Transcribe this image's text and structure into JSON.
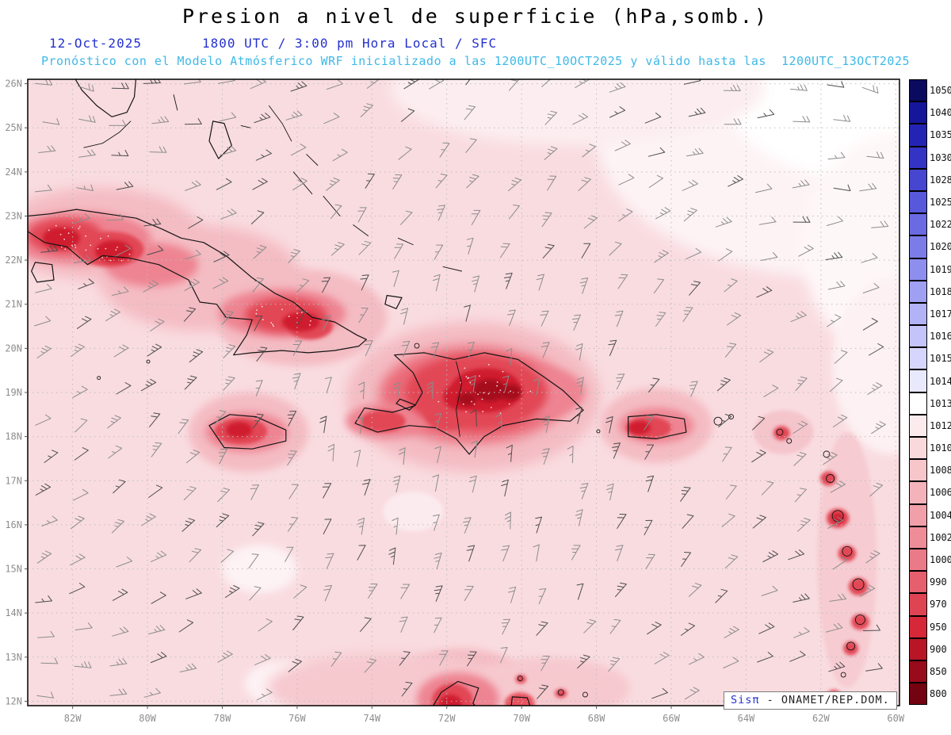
{
  "title": "Presion a nivel de superficie (hPa,somb.)",
  "subtitle": {
    "date": "12-Oct-2025",
    "time": "1800 UTC / 3:00 pm Hora Local / SFC",
    "model_note": "Pronóstico con el Modelo Atmósferico WRF inicializado a las 1200UTC_10OCT2025 y válido hasta las  1200UTC_13OCT2025"
  },
  "credit": {
    "brand": "Sisπ",
    "text": " - ONAMET/REP.DOM."
  },
  "colors": {
    "title_text": "#000000",
    "datetime_text": "#2531cf",
    "note_text": "#3fb8e8",
    "axis_label": "#8e8e8e",
    "sea_base": "#f9dce0",
    "coastline": "#141414",
    "grid": "#bdbdbd"
  },
  "map": {
    "extent": {
      "lon_min": -83.2,
      "lon_max": -59.9,
      "lat_min": 11.9,
      "lat_max": 26.1
    },
    "lat_labels": [
      "26N",
      "25N",
      "24N",
      "23N",
      "22N",
      "21N",
      "20N",
      "19N",
      "18N",
      "17N",
      "16N",
      "15N",
      "14N",
      "13N",
      "12N"
    ],
    "lon_labels": [
      "82W",
      "80W",
      "78W",
      "76W",
      "74W",
      "72W",
      "70W",
      "68W",
      "66W",
      "64W",
      "62W",
      "60W"
    ]
  },
  "colorbar": {
    "labels": [
      "1050",
      "1040",
      "1035",
      "1030",
      "1028",
      "1025",
      "1022",
      "1020",
      "1019",
      "1018",
      "1017",
      "1016",
      "1015",
      "1014",
      "1013",
      "1012",
      "1010",
      "1008",
      "1006",
      "1004",
      "1002",
      "1000",
      "990",
      "970",
      "950",
      "900",
      "850",
      "800"
    ],
    "colors": [
      "#0a0a5e",
      "#16169b",
      "#2424b4",
      "#3434c4",
      "#4646d0",
      "#5858da",
      "#6a6ae2",
      "#7c7ce9",
      "#8e8eef",
      "#a0a0f3",
      "#b2b2f7",
      "#c4c4fa",
      "#d6d6fc",
      "#e9e9fe",
      "#ffffff",
      "#fcebed",
      "#fad9dc",
      "#f7c6cb",
      "#f4b3ba",
      "#f1a0a9",
      "#ee8d98",
      "#ea7a87",
      "#e55f6d",
      "#df4453",
      "#d62838",
      "#b81626",
      "#970b1a",
      "#730310"
    ]
  },
  "geo": {
    "polygons": {
      "cuba": [
        [
          -83.2,
          23.0
        ],
        [
          -82.6,
          23.05
        ],
        [
          -81.9,
          23.15
        ],
        [
          -81.1,
          23.05
        ],
        [
          -80.3,
          22.95
        ],
        [
          -79.6,
          22.7
        ],
        [
          -79.1,
          22.5
        ],
        [
          -78.5,
          22.4
        ],
        [
          -77.9,
          22.1
        ],
        [
          -77.2,
          21.6
        ],
        [
          -76.6,
          21.25
        ],
        [
          -76.1,
          21.05
        ],
        [
          -75.6,
          20.7
        ],
        [
          -75.0,
          20.6
        ],
        [
          -74.4,
          20.3
        ],
        [
          -74.15,
          20.2
        ],
        [
          -74.35,
          20.05
        ],
        [
          -75.0,
          19.95
        ],
        [
          -75.7,
          19.9
        ],
        [
          -76.4,
          19.95
        ],
        [
          -77.2,
          19.9
        ],
        [
          -77.7,
          19.85
        ],
        [
          -77.35,
          20.3
        ],
        [
          -77.2,
          20.65
        ],
        [
          -77.9,
          20.7
        ],
        [
          -78.15,
          21.0
        ],
        [
          -78.6,
          21.05
        ],
        [
          -78.9,
          21.55
        ],
        [
          -79.7,
          21.9
        ],
        [
          -80.5,
          22.05
        ],
        [
          -81.2,
          22.1
        ],
        [
          -81.6,
          21.9
        ],
        [
          -82.15,
          22.3
        ],
        [
          -82.75,
          22.4
        ],
        [
          -83.2,
          22.65
        ]
      ],
      "isla_juventud": [
        [
          -83.0,
          21.95
        ],
        [
          -82.55,
          21.9
        ],
        [
          -82.5,
          21.55
        ],
        [
          -82.95,
          21.5
        ],
        [
          -83.1,
          21.75
        ]
      ],
      "hispaniola": [
        [
          -73.4,
          19.85
        ],
        [
          -72.6,
          19.9
        ],
        [
          -71.8,
          19.75
        ],
        [
          -71.0,
          19.9
        ],
        [
          -70.1,
          19.75
        ],
        [
          -69.4,
          19.35
        ],
        [
          -68.9,
          19.05
        ],
        [
          -68.35,
          18.6
        ],
        [
          -68.7,
          18.35
        ],
        [
          -69.6,
          18.4
        ],
        [
          -70.5,
          18.25
        ],
        [
          -71.0,
          18.0
        ],
        [
          -71.4,
          17.6
        ],
        [
          -71.75,
          17.95
        ],
        [
          -72.3,
          18.2
        ],
        [
          -73.0,
          18.25
        ],
        [
          -73.85,
          18.1
        ],
        [
          -74.45,
          18.3
        ],
        [
          -74.2,
          18.65
        ],
        [
          -73.45,
          18.55
        ],
        [
          -72.85,
          18.7
        ],
        [
          -72.65,
          19.0
        ],
        [
          -72.9,
          19.45
        ],
        [
          -73.4,
          19.85
        ]
      ],
      "jamaica": [
        [
          -78.35,
          18.25
        ],
        [
          -77.8,
          18.5
        ],
        [
          -77.1,
          18.45
        ],
        [
          -76.3,
          18.15
        ],
        [
          -76.3,
          17.9
        ],
        [
          -77.2,
          17.72
        ],
        [
          -77.95,
          17.75
        ],
        [
          -78.35,
          18.25
        ]
      ],
      "puerto_rico": [
        [
          -67.15,
          18.45
        ],
        [
          -66.4,
          18.5
        ],
        [
          -65.65,
          18.4
        ],
        [
          -65.6,
          18.1
        ],
        [
          -66.4,
          17.95
        ],
        [
          -67.15,
          18.0
        ],
        [
          -67.15,
          18.45
        ]
      ],
      "gonave": [
        [
          -73.25,
          18.85
        ],
        [
          -72.85,
          18.72
        ],
        [
          -73.0,
          18.6
        ],
        [
          -73.35,
          18.75
        ]
      ],
      "andros": [
        [
          -78.25,
          25.15
        ],
        [
          -77.95,
          25.1
        ],
        [
          -77.75,
          24.6
        ],
        [
          -78.1,
          24.3
        ],
        [
          -78.35,
          24.7
        ]
      ],
      "inagua": [
        [
          -73.6,
          21.2
        ],
        [
          -73.2,
          21.15
        ],
        [
          -73.35,
          20.9
        ],
        [
          -73.65,
          21.0
        ]
      ],
      "florida": [
        [
          -82.0,
          26.2
        ],
        [
          -81.75,
          25.85
        ],
        [
          -81.35,
          25.5
        ],
        [
          -80.95,
          25.25
        ],
        [
          -80.55,
          25.35
        ],
        [
          -80.35,
          25.7
        ],
        [
          -80.3,
          26.2
        ]
      ],
      "guajira": [
        [
          -72.5,
          11.7
        ],
        [
          -72.15,
          12.2
        ],
        [
          -71.7,
          12.45
        ],
        [
          -71.15,
          12.3
        ],
        [
          -71.3,
          11.95
        ],
        [
          -71.0,
          11.7
        ]
      ],
      "paraguana": [
        [
          -70.3,
          11.7
        ],
        [
          -70.25,
          12.1
        ],
        [
          -69.85,
          12.08
        ],
        [
          -69.7,
          11.7
        ]
      ]
    },
    "lines": {
      "florida_keys": [
        [
          -81.7,
          24.55
        ],
        [
          -81.2,
          24.65
        ],
        [
          -80.75,
          24.9
        ],
        [
          -80.45,
          25.15
        ]
      ],
      "bimini": [
        [
          -79.3,
          25.75
        ],
        [
          -79.2,
          25.4
        ]
      ],
      "new_providence": [
        [
          -77.5,
          25.05
        ],
        [
          -77.25,
          25.0
        ]
      ],
      "eleuthera": [
        [
          -76.75,
          25.5
        ],
        [
          -76.4,
          25.1
        ],
        [
          -76.15,
          24.7
        ]
      ],
      "exuma": [
        [
          -76.1,
          24.0
        ],
        [
          -75.6,
          23.5
        ]
      ],
      "cat_island": [
        [
          -75.75,
          24.4
        ],
        [
          -75.45,
          24.15
        ]
      ],
      "long_island": [
        [
          -75.3,
          23.45
        ],
        [
          -74.85,
          23.0
        ]
      ],
      "crooked_island": [
        [
          -74.5,
          22.8
        ],
        [
          -74.1,
          22.55
        ]
      ],
      "mayaguana": [
        [
          -73.3,
          22.5
        ],
        [
          -72.9,
          22.35
        ]
      ],
      "turks_caicos": [
        [
          -72.1,
          21.85
        ],
        [
          -71.6,
          21.75
        ]
      ],
      "haiti_dr_border": [
        [
          -71.75,
          19.7
        ],
        [
          -71.6,
          19.2
        ],
        [
          -71.75,
          18.6
        ],
        [
          -71.65,
          18.0
        ]
      ]
    },
    "island_dots": [
      [
        -81.3,
        19.33,
        2
      ],
      [
        -79.98,
        19.7,
        2
      ],
      [
        -72.8,
        20.06,
        3
      ],
      [
        -67.95,
        18.12,
        2
      ],
      [
        -64.75,
        18.35,
        5
      ],
      [
        -64.4,
        18.45,
        3
      ],
      [
        -63.1,
        18.1,
        4
      ],
      [
        -62.85,
        17.9,
        3
      ],
      [
        -61.85,
        17.6,
        4
      ],
      [
        -61.75,
        17.05,
        5
      ],
      [
        -61.55,
        16.2,
        7
      ],
      [
        -61.3,
        15.4,
        6
      ],
      [
        -61.0,
        14.65,
        7
      ],
      [
        -60.95,
        13.85,
        6
      ],
      [
        -61.2,
        13.25,
        5
      ],
      [
        -61.4,
        12.6,
        3
      ],
      [
        -61.65,
        12.1,
        5
      ],
      [
        -70.04,
        12.52,
        3
      ],
      [
        -68.95,
        12.2,
        3.5
      ],
      [
        -68.3,
        12.15,
        3
      ]
    ],
    "shading": [
      [
        -61.5,
        24.8,
        6.5,
        3.2,
        "#fdf3f5"
      ],
      [
        -60.0,
        25.7,
        4.5,
        2.0,
        "#ffffff"
      ],
      [
        -59.9,
        22.3,
        2.6,
        2.6,
        "#fef7f8"
      ],
      [
        -60.1,
        19.6,
        1.6,
        2.0,
        "#fdf1f3"
      ],
      [
        -68.5,
        25.9,
        5.0,
        1.3,
        "#fceef0"
      ],
      [
        -77.0,
        15.0,
        1.0,
        0.55,
        "#fdf2f4"
      ],
      [
        -76.4,
        12.4,
        1.0,
        0.5,
        "#fdf2f4"
      ],
      [
        -72.9,
        16.3,
        0.8,
        0.45,
        "#fbebee"
      ],
      [
        -81.3,
        22.6,
        2.7,
        1.05,
        "#f4bcc3"
      ],
      [
        -78.6,
        21.6,
        2.7,
        1.2,
        "#f4bcc3"
      ],
      [
        -75.9,
        20.7,
        2.3,
        1.1,
        "#f4bcc3"
      ],
      [
        -71.3,
        18.9,
        3.4,
        1.7,
        "#f4bcc3"
      ],
      [
        -77.3,
        18.1,
        1.6,
        0.9,
        "#f4bcc3"
      ],
      [
        -66.4,
        18.25,
        1.5,
        0.85,
        "#f4bcc3"
      ],
      [
        -71.6,
        12.2,
        1.9,
        1.0,
        "#f4bcc3"
      ],
      [
        -61.3,
        15.2,
        0.8,
        2.9,
        "#f6ccd2"
      ],
      [
        -63.0,
        18.1,
        0.8,
        0.5,
        "#f5c5cc"
      ],
      [
        -73.6,
        12.3,
        3.2,
        0.8,
        "#f6c9cf"
      ],
      [
        -69.3,
        12.3,
        2.2,
        0.7,
        "#f6c9cf"
      ],
      [
        -81.8,
        22.5,
        1.9,
        0.6,
        "#ee8492"
      ],
      [
        -79.9,
        21.9,
        1.25,
        0.5,
        "#ee8492"
      ],
      [
        -76.4,
        20.8,
        1.7,
        0.55,
        "#ee8492"
      ],
      [
        -71.3,
        18.95,
        2.5,
        1.1,
        "#ea6a78"
      ],
      [
        -69.6,
        19.0,
        1.3,
        0.6,
        "#ee8492"
      ],
      [
        -73.6,
        18.35,
        1.1,
        0.4,
        "#ee8492"
      ],
      [
        -77.35,
        18.1,
        1.1,
        0.45,
        "#ee8492"
      ],
      [
        -66.4,
        18.25,
        1.0,
        0.4,
        "#ee8492"
      ],
      [
        -71.7,
        12.05,
        1.1,
        0.6,
        "#ee8492"
      ],
      [
        -82.2,
        22.55,
        1.0,
        0.4,
        "#e24755",
        1
      ],
      [
        -81.0,
        22.25,
        0.9,
        0.4,
        "#e24755",
        1
      ],
      [
        -76.3,
        20.75,
        1.1,
        0.4,
        "#e24755",
        1
      ],
      [
        -75.65,
        20.5,
        0.6,
        0.3,
        "#e24755"
      ],
      [
        -71.2,
        19.0,
        1.9,
        0.85,
        "#e24755",
        1
      ],
      [
        -72.0,
        18.55,
        0.6,
        0.4,
        "#e24755"
      ],
      [
        -77.5,
        18.12,
        0.7,
        0.3,
        "#e24755"
      ],
      [
        -66.6,
        18.2,
        0.6,
        0.25,
        "#e24755"
      ],
      [
        -73.7,
        18.35,
        0.6,
        0.25,
        "#e24755"
      ],
      [
        -71.85,
        12.0,
        0.55,
        0.4,
        "#e24755"
      ],
      [
        -70.05,
        11.95,
        0.4,
        0.25,
        "#e8525f"
      ],
      [
        -63.05,
        18.08,
        0.22,
        0.16,
        "#e24755"
      ],
      [
        -61.8,
        17.05,
        0.22,
        0.16,
        "#e24755"
      ],
      [
        -61.55,
        16.15,
        0.3,
        0.22,
        "#e24755"
      ],
      [
        -61.3,
        15.35,
        0.24,
        0.18,
        "#e24755"
      ],
      [
        -61.0,
        14.6,
        0.26,
        0.2,
        "#e24755"
      ],
      [
        -60.95,
        13.8,
        0.24,
        0.18,
        "#e24755"
      ],
      [
        -61.2,
        13.2,
        0.2,
        0.16,
        "#e24755"
      ],
      [
        -61.65,
        12.1,
        0.2,
        0.16,
        "#e24755"
      ],
      [
        -70.02,
        12.5,
        0.14,
        0.1,
        "#e24755"
      ],
      [
        -68.95,
        12.18,
        0.16,
        0.1,
        "#e24755"
      ],
      [
        -70.95,
        19.05,
        0.95,
        0.5,
        "#cf1f2e",
        1
      ],
      [
        -71.6,
        18.9,
        0.5,
        0.3,
        "#cf1f2e"
      ],
      [
        -82.3,
        22.5,
        0.5,
        0.25,
        "#cf1f2e"
      ],
      [
        -80.9,
        22.2,
        0.5,
        0.25,
        "#cf1f2e"
      ],
      [
        -75.9,
        20.6,
        0.5,
        0.22,
        "#cf1f2e"
      ],
      [
        -77.55,
        18.15,
        0.35,
        0.18,
        "#cf1f2e"
      ],
      [
        -66.85,
        18.2,
        0.3,
        0.15,
        "#cf1f2e"
      ],
      [
        -61.55,
        16.15,
        0.15,
        0.12,
        "#cf1f2e"
      ],
      [
        -71.9,
        11.95,
        0.3,
        0.2,
        "#cf1f2e"
      ],
      [
        -70.85,
        19.05,
        0.45,
        0.25,
        "#a60d1c"
      ],
      [
        -71.45,
        18.85,
        0.25,
        0.15,
        "#a60d1c"
      ],
      [
        -70.3,
        19.0,
        0.3,
        0.18,
        "#a60d1c"
      ]
    ]
  },
  "chart_data": {
    "type": "heatmap",
    "title": "Presion a nivel de superficie (hPa,somb.)",
    "valid": "12-Oct-2025 1800 UTC / 3:00 pm Hora Local / SFC",
    "model": "WRF",
    "initialized": "1200UTC_10OCT2025",
    "valid_until": "1200UTC_13OCT2025",
    "units": "hPa",
    "lat_range_deg_n": [
      12,
      26
    ],
    "lon_range_deg_w": [
      82,
      60
    ],
    "colorbar_levels": [
      1050,
      1040,
      1035,
      1030,
      1028,
      1025,
      1022,
      1020,
      1019,
      1018,
      1017,
      1016,
      1015,
      1014,
      1013,
      1012,
      1010,
      1008,
      1006,
      1004,
      1002,
      1000,
      990,
      970,
      950,
      900,
      850,
      800
    ],
    "legend_position": "right",
    "grid": true,
    "field_summary": "Sea-level pressure ~1010-1013 hPa (pale pink to white) over the open Atlantic, whitest in the northeast; lower shaded values (pink to dark red, ~1008 down past 1000) over land: Cuba, Hispaniola (strongest core), Jamaica, Puerto Rico, the Lesser Antilles chain and the Guajira/Paraguana coast; gray wind barbs depict easterly trade-wind flow across the whole domain."
  }
}
